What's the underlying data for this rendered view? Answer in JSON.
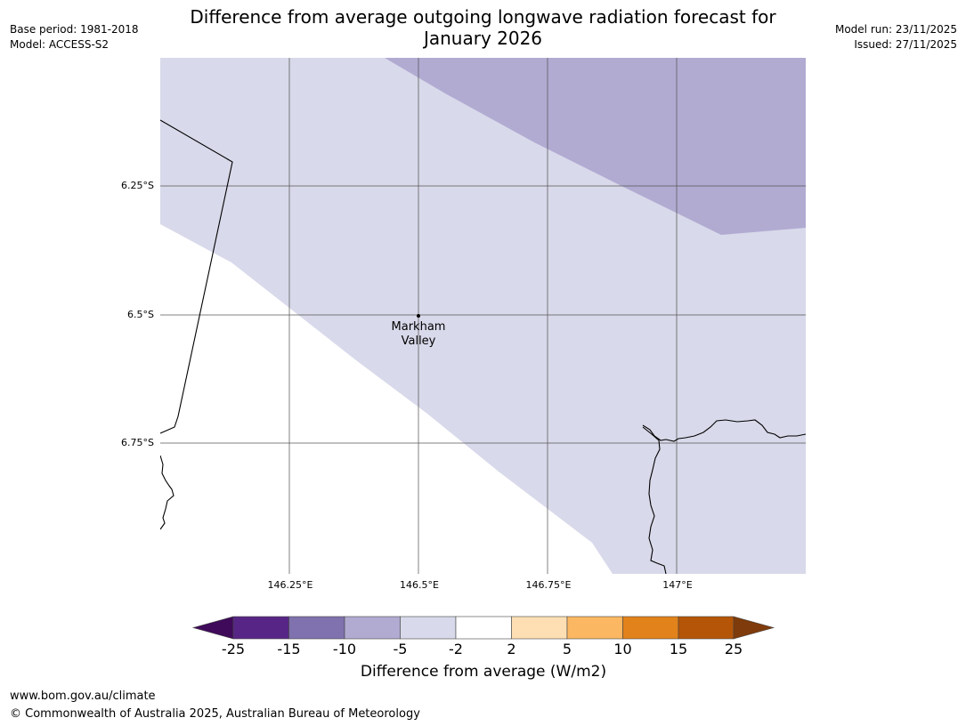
{
  "header": {
    "title_line1": "Difference from average outgoing longwave radiation forecast for",
    "title_line2": "January 2026",
    "base_period": "Base period: 1981-2018",
    "model": "Model: ACCESS-S2",
    "model_run": "Model run: 23/11/2025",
    "issued": "Issued: 27/11/2025"
  },
  "map": {
    "latitude_labels": [
      "6.25°S",
      "6.5°S",
      "6.75°S"
    ],
    "longitude_labels": [
      "146.25°E",
      "146.5°E",
      "146.75°E",
      "147°E"
    ],
    "place": {
      "name_line1": "Markham",
      "name_line2": "Valley"
    },
    "colors": {
      "band_minus5_to_minus2": "#d8d9ea",
      "band_minus10_to_minus5": "#b1abd2",
      "band_neutral": "#ffffff"
    }
  },
  "colorbar": {
    "title": "Difference from average (W/m2)",
    "ticks": [
      "-25",
      "-15",
      "-10",
      "-5",
      "-2",
      "2",
      "5",
      "10",
      "15",
      "25"
    ],
    "colors": [
      "#3f0a5a",
      "#572586",
      "#8072ae",
      "#b1abd2",
      "#d8d9ea",
      "#ffffff",
      "#fddfb3",
      "#fbb762",
      "#e2821b",
      "#b45508",
      "#7f3b0b"
    ]
  },
  "footer": {
    "url": "www.bom.gov.au/climate",
    "copyright": "© Commonwealth of Australia 2025, Australian Bureau of Meteorology"
  }
}
